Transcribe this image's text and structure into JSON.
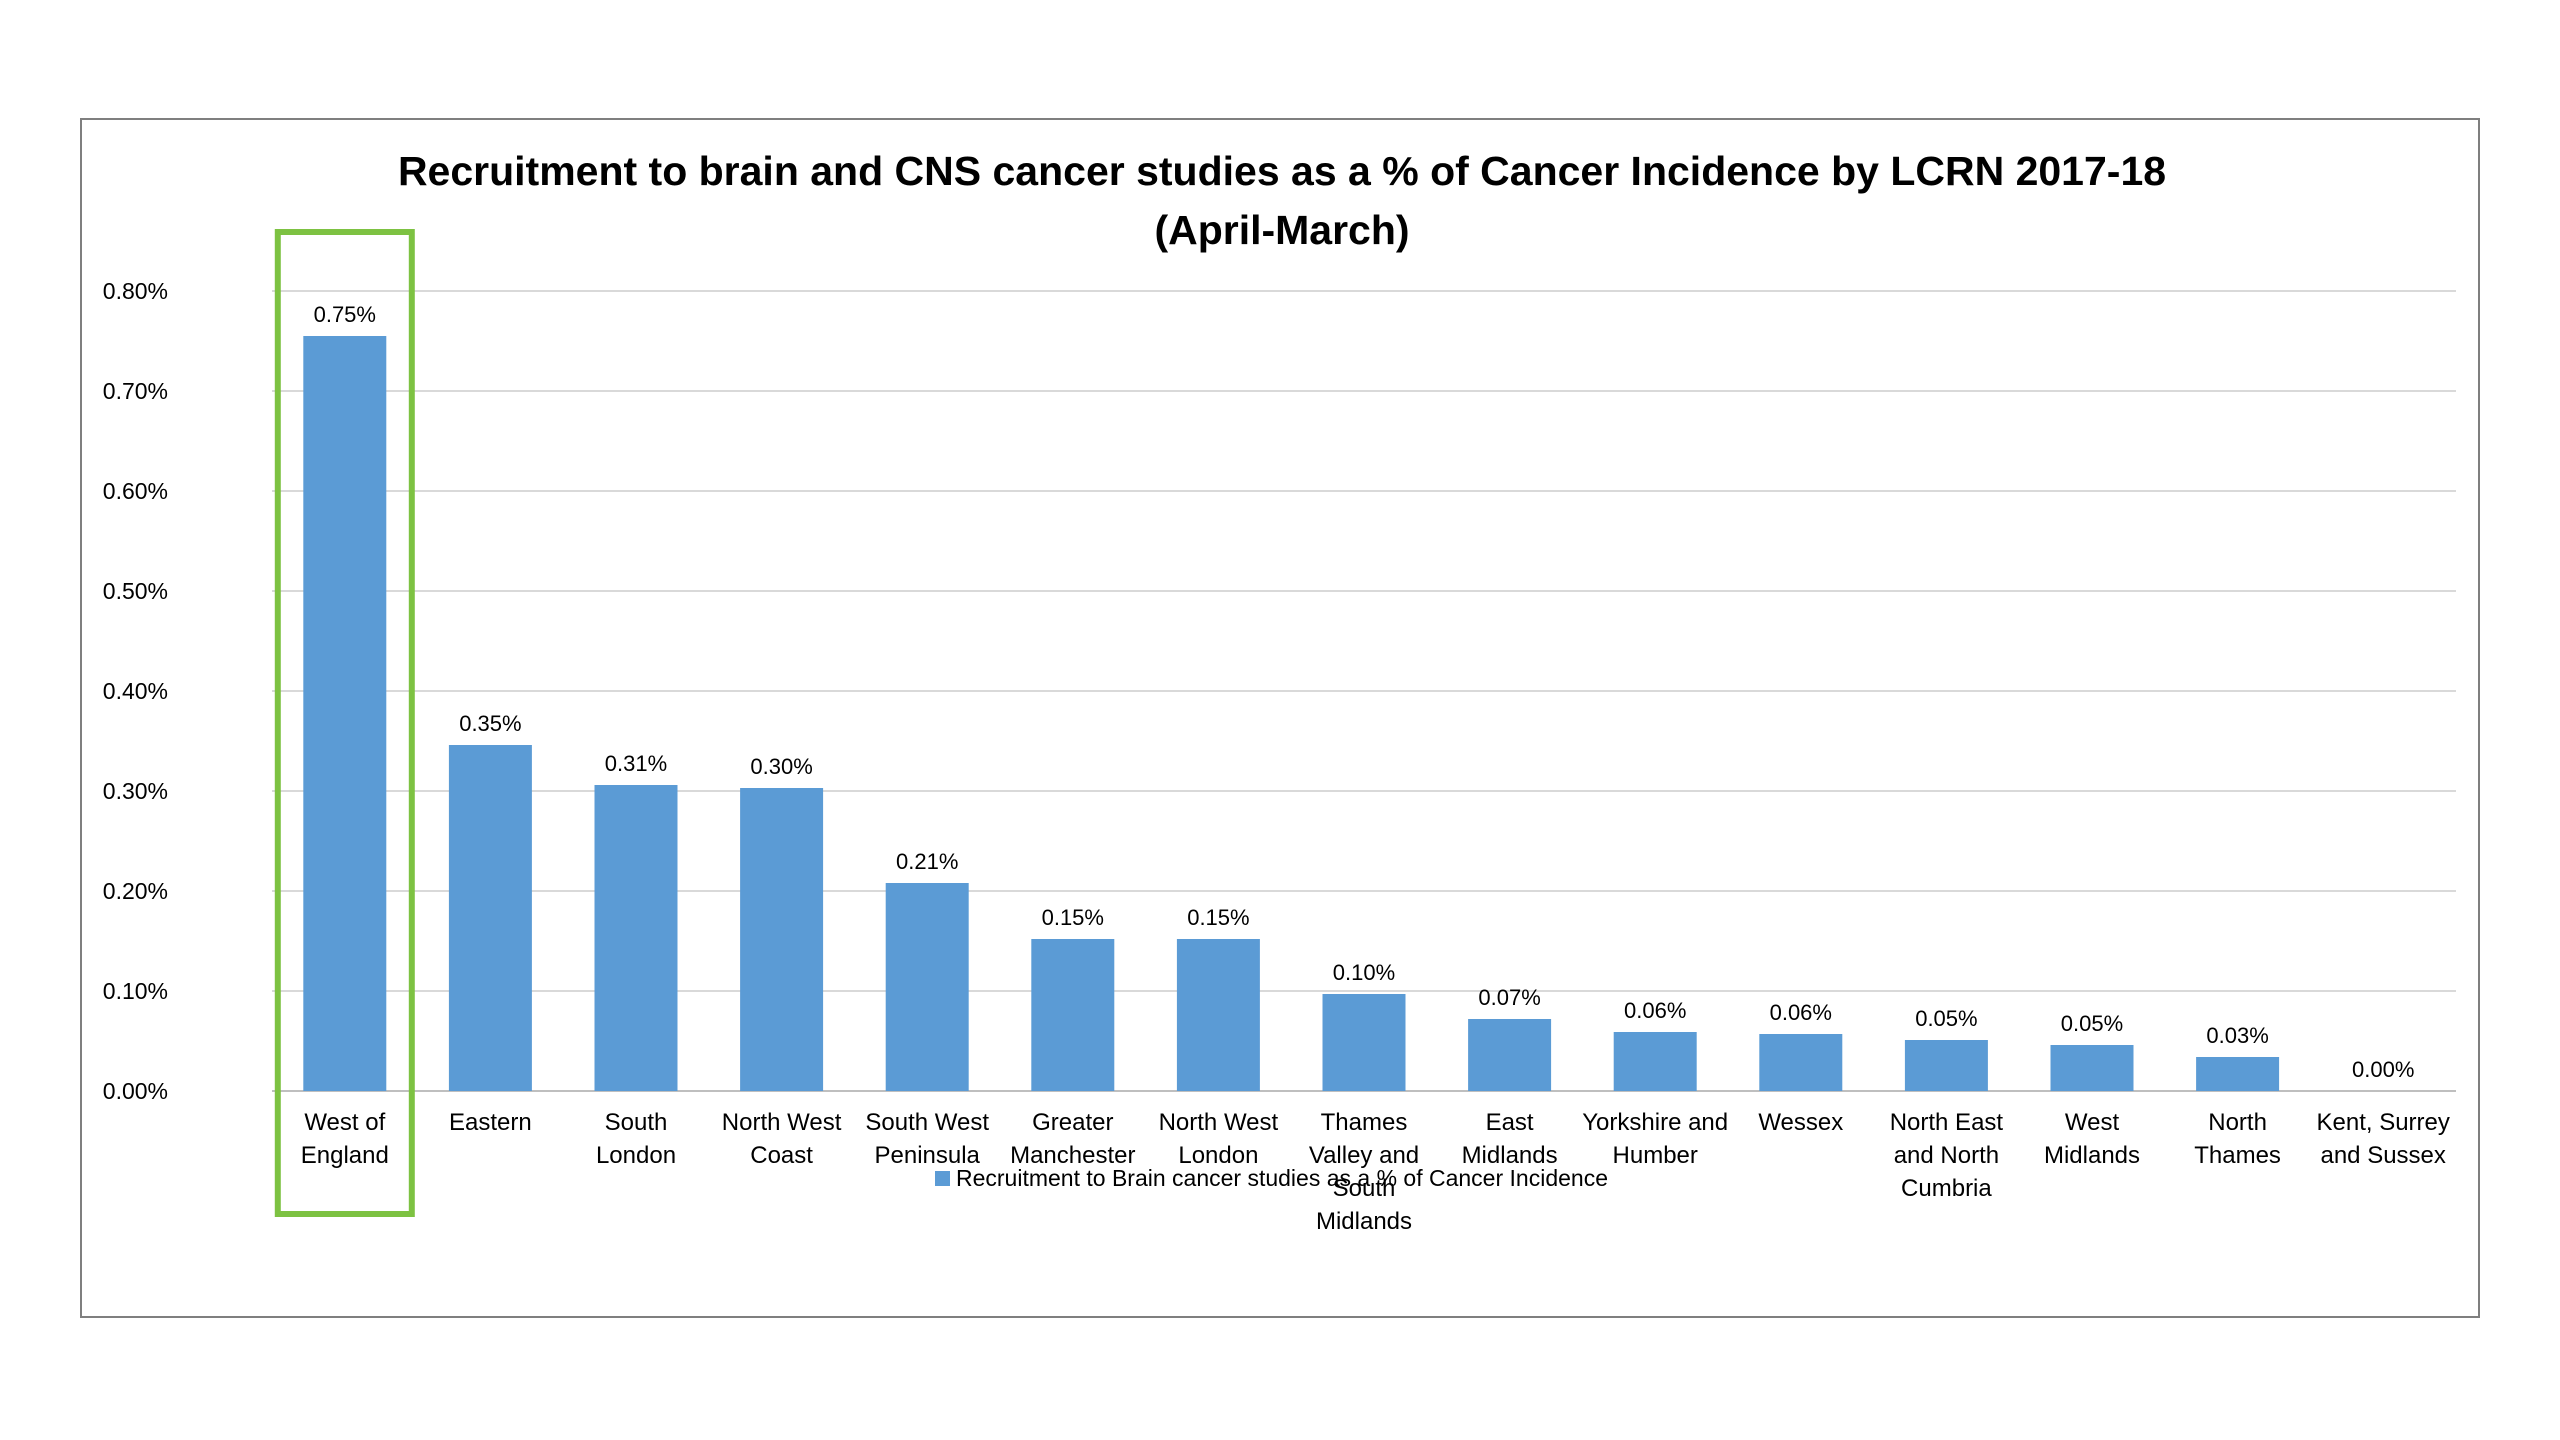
{
  "chart_data": {
    "type": "bar",
    "title_lines": [
      "Recruitment to brain and CNS cancer studies as a % of Cancer Incidence by LCRN 2017-18",
      "(April-March)"
    ],
    "categories": [
      [
        "West of",
        "England"
      ],
      [
        "Eastern"
      ],
      [
        "South",
        "London"
      ],
      [
        "North West",
        "Coast"
      ],
      [
        "South West",
        "Peninsula"
      ],
      [
        "Greater",
        "Manchester"
      ],
      [
        "North West",
        "London"
      ],
      [
        "Thames",
        "Valley and",
        "South",
        "Midlands"
      ],
      [
        "East",
        "Midlands"
      ],
      [
        "Yorkshire and",
        "Humber"
      ],
      [
        "Wessex"
      ],
      [
        "North East",
        "and North",
        "Cumbria"
      ],
      [
        "West",
        "Midlands"
      ],
      [
        "North",
        "Thames"
      ],
      [
        "Kent, Surrey",
        "and Sussex"
      ]
    ],
    "series": [
      {
        "name": "Recruitment to Brain cancer studies as a % of Cancer Incidence",
        "values": [
          0.755,
          0.346,
          0.306,
          0.303,
          0.208,
          0.152,
          0.152,
          0.097,
          0.072,
          0.059,
          0.057,
          0.051,
          0.046,
          0.034,
          0.0
        ],
        "data_labels": [
          "0.75%",
          "0.35%",
          "0.31%",
          "0.30%",
          "0.21%",
          "0.15%",
          "0.15%",
          "0.10%",
          "0.07%",
          "0.06%",
          "0.06%",
          "0.05%",
          "0.05%",
          "0.03%",
          "0.00%"
        ]
      }
    ],
    "y_ticks": [
      "0.00%",
      "0.10%",
      "0.20%",
      "0.30%",
      "0.40%",
      "0.50%",
      "0.60%",
      "0.70%",
      "0.80%"
    ],
    "ylim": [
      0,
      0.8
    ],
    "grid": true,
    "legend_position": "bottom",
    "highlighted_category_index": 0,
    "colors": {
      "bar": "#5b9bd5",
      "highlight": "#7dc242",
      "grid": "#d9d9d9"
    }
  }
}
